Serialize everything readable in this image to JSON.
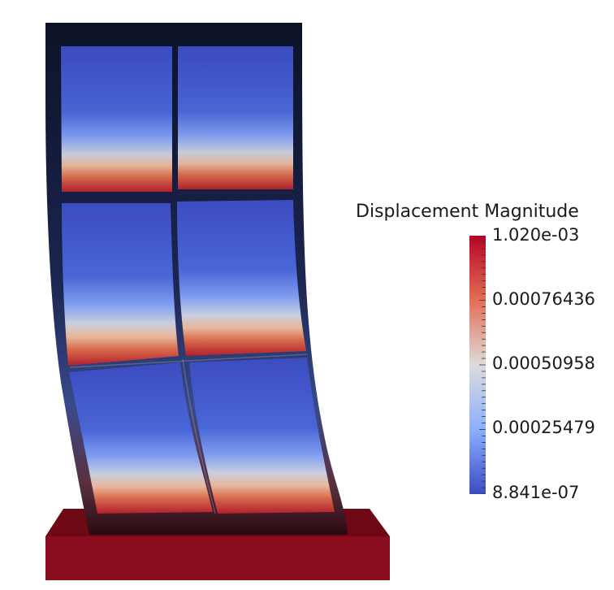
{
  "legend": {
    "title": "Displacement Magnitude",
    "labels": [
      "1.020e-03",
      "0.00076436",
      "0.00050958",
      "0.00025479",
      "8.841e-07"
    ],
    "colormap": [
      "#b40426",
      "#dc5d4a",
      "#f6a385",
      "#dddcdc",
      "#a7c5fe",
      "#6a8bef",
      "#3b4cc0"
    ],
    "value_max": 0.00102,
    "value_min": 8.841e-07
  },
  "colors": {
    "frame_dark": "#111a33",
    "base": "#8a0d1e",
    "base_top": "#6b0714",
    "panel_top": "#3b4cc0",
    "panel_bottom": "#b40426"
  }
}
